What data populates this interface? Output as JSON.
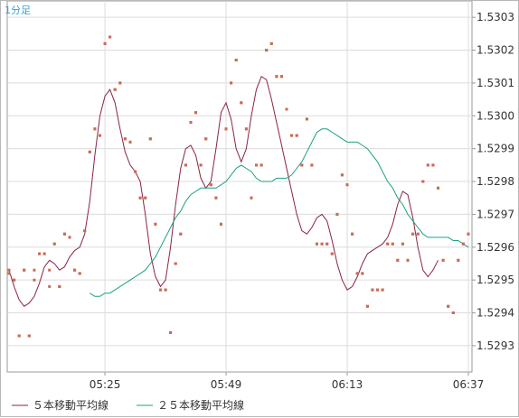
{
  "chart_data": {
    "type": "line",
    "timeframe_label": "1分足",
    "x_ticks": [
      "05:25",
      "05:49",
      "06:13",
      "06:37"
    ],
    "y_ticks": [
      "1.5303",
      "1.5302",
      "1.5301",
      "1.5300",
      "1.5299",
      "1.5298",
      "1.5297",
      "1.5296",
      "1.5295",
      "1.5294",
      "1.5293"
    ],
    "ylim": [
      1.52922,
      1.53035
    ],
    "grid": true,
    "legend_position": "bottom-left",
    "colors": {
      "ma5": "#8b2348",
      "ma25": "#1aa083",
      "points": "#c96a55"
    },
    "points": [
      [
        1.52953,
        1.52952
      ],
      [
        1.5295,
        1.5295
      ],
      [
        1.52933,
        1.52933
      ],
      [
        1.52953,
        1.52953
      ],
      [
        1.52933,
        1.52933
      ],
      [
        1.52953,
        1.5295
      ],
      [
        1.52958,
        1.52958
      ],
      [
        1.52958,
        1.52958
      ],
      [
        1.52953,
        1.52948
      ],
      [
        1.52961,
        1.52961
      ],
      [
        1.52948,
        1.52948
      ],
      [
        1.52964,
        1.52964
      ],
      [
        1.52963,
        1.52963
      ],
      [
        1.52953,
        1.52953
      ],
      [
        1.52952,
        1.52952
      ],
      [
        1.52965,
        1.52965
      ],
      [
        1.52989,
        1.52989
      ],
      [
        1.52996,
        1.52996
      ],
      [
        1.52994,
        1.52994
      ],
      [
        1.53022,
        1.53022
      ],
      [
        1.53024,
        1.53024
      ],
      [
        1.53008,
        1.53008
      ],
      [
        1.5301,
        1.5301
      ],
      [
        1.52993,
        1.52993
      ],
      [
        1.52992,
        1.52992
      ],
      [
        1.52983,
        1.52983
      ],
      [
        1.52975,
        1.52975
      ],
      [
        1.52975,
        1.52975
      ],
      [
        1.52993,
        1.52993
      ],
      [
        1.52967,
        1.52967
      ],
      [
        1.52947,
        1.52947
      ],
      [
        1.52947,
        1.52947
      ],
      [
        1.52934,
        1.52934
      ],
      [
        1.52955,
        1.52955
      ],
      [
        1.52964,
        1.52964
      ],
      [
        1.52985,
        1.52985
      ],
      [
        1.52998,
        1.52998
      ],
      [
        1.53001,
        1.53001
      ],
      [
        1.52985,
        1.52985
      ],
      [
        1.52993,
        1.52993
      ],
      [
        1.52979,
        1.52979
      ],
      [
        1.52975,
        1.52975
      ],
      [
        1.52967,
        1.52967
      ],
      [
        1.52996,
        1.52996
      ],
      [
        1.5301,
        1.5301
      ],
      [
        1.53017,
        1.53017
      ],
      [
        1.53004,
        1.53004
      ],
      [
        1.52996,
        1.52996
      ],
      [
        1.52975,
        1.52975
      ],
      [
        1.52985,
        1.52985
      ],
      [
        1.52985,
        1.52985
      ],
      [
        1.5302,
        1.5302
      ],
      [
        1.53022,
        1.53022
      ],
      [
        1.53012,
        1.53012
      ],
      [
        1.53012,
        1.53012
      ],
      [
        1.53002,
        1.53002
      ],
      [
        1.52994,
        1.52994
      ],
      [
        1.52994,
        1.52994
      ],
      [
        1.52985,
        1.52985
      ],
      [
        1.52999,
        1.52999
      ],
      [
        1.52985,
        1.52985
      ],
      [
        1.52961,
        1.52961
      ],
      [
        1.52961,
        1.52961
      ],
      [
        1.52961,
        1.52961
      ],
      [
        1.52958,
        1.52958
      ],
      [
        1.5297,
        1.5297
      ],
      [
        1.52982,
        1.52982
      ],
      [
        1.52979,
        1.52979
      ],
      [
        1.52964,
        1.52964
      ],
      [
        1.52952,
        1.52952
      ],
      [
        1.52952,
        1.52952
      ],
      [
        1.52942,
        1.52942
      ],
      [
        1.52947,
        1.52947
      ],
      [
        1.52947,
        1.52947
      ],
      [
        1.52947,
        1.52947
      ],
      [
        1.52961,
        1.52961
      ],
      [
        1.52961,
        1.52961
      ],
      [
        1.52956,
        1.52956
      ],
      [
        1.52961,
        1.52961
      ],
      [
        1.52956,
        1.52956
      ],
      [
        1.52964,
        1.52964
      ],
      [
        1.52964,
        1.52964
      ],
      [
        1.5298,
        1.5298
      ],
      [
        1.52985,
        1.52985
      ],
      [
        1.52985,
        1.52985
      ],
      [
        1.52978,
        1.52978
      ],
      [
        1.52956,
        1.52956
      ],
      [
        1.52942,
        1.52942
      ],
      [
        1.5294,
        1.5294
      ],
      [
        1.52956,
        1.52956
      ],
      [
        1.52961,
        1.52961
      ],
      [
        1.52964,
        1.52964
      ]
    ],
    "series": [
      {
        "name": "５本移動平均線",
        "values": [
          1.52953,
          1.52948,
          1.52944,
          1.52942,
          1.52943,
          1.52945,
          1.52949,
          1.52954,
          1.52956,
          1.52955,
          1.52953,
          1.52954,
          1.52957,
          1.52959,
          1.5296,
          1.52964,
          1.52974,
          1.52988,
          1.53,
          1.53006,
          1.53008,
          1.53004,
          1.52996,
          1.52989,
          1.52985,
          1.52983,
          1.5298,
          1.5297,
          1.52958,
          1.52951,
          1.52948,
          1.5295,
          1.5296,
          1.52973,
          1.52984,
          1.5299,
          1.52991,
          1.52988,
          1.52981,
          1.52978,
          1.5298,
          1.5299,
          1.53001,
          1.53004,
          1.52999,
          1.5299,
          1.52986,
          1.5299,
          1.53,
          1.53008,
          1.53012,
          1.53011,
          1.53005,
          1.52998,
          1.52991,
          1.52984,
          1.52977,
          1.5297,
          1.52965,
          1.52964,
          1.52966,
          1.52969,
          1.5297,
          1.52968,
          1.52962,
          1.52955,
          1.5295,
          1.52947,
          1.52948,
          1.52951,
          1.52955,
          1.52958,
          1.52959,
          1.5296,
          1.52961,
          1.52963,
          1.52967,
          1.52973,
          1.52977,
          1.52976,
          1.52969,
          1.5296,
          1.52953,
          1.52951,
          1.52953,
          1.52956
        ]
      },
      {
        "name": "２５本移動平均線",
        "values": [
          1.52946,
          1.52945,
          1.52945,
          1.52946,
          1.52946,
          1.52947,
          1.52948,
          1.52949,
          1.5295,
          1.52951,
          1.52952,
          1.52953,
          1.52955,
          1.52957,
          1.5296,
          1.52963,
          1.52966,
          1.52969,
          1.52971,
          1.52974,
          1.52976,
          1.52977,
          1.52978,
          1.52978,
          1.52978,
          1.52978,
          1.52979,
          1.5298,
          1.52982,
          1.52984,
          1.52985,
          1.52984,
          1.52983,
          1.52981,
          1.5298,
          1.5298,
          1.5298,
          1.52981,
          1.52981,
          1.52981,
          1.52982,
          1.52984,
          1.52986,
          1.52989,
          1.52992,
          1.52995,
          1.52996,
          1.52996,
          1.52995,
          1.52994,
          1.52993,
          1.52992,
          1.52992,
          1.52992,
          1.52991,
          1.5299,
          1.52988,
          1.52986,
          1.52983,
          1.5298,
          1.52978,
          1.52975,
          1.52973,
          1.5297,
          1.52968,
          1.52966,
          1.52964,
          1.52963,
          1.52963,
          1.52963,
          1.52963,
          1.52963,
          1.52962,
          1.52962,
          1.52961,
          1.5296
        ]
      }
    ]
  }
}
